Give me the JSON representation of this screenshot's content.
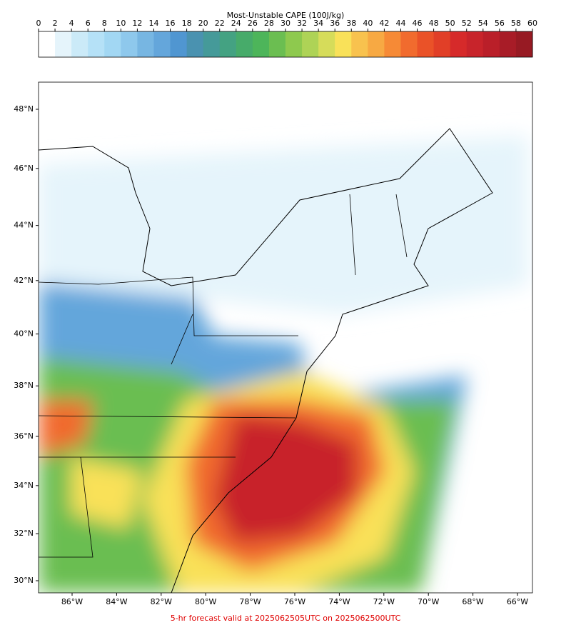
{
  "colorbar": {
    "title": "Most-Unstable CAPE (100J/kg)",
    "ticks": [
      0,
      2,
      4,
      6,
      8,
      10,
      12,
      14,
      16,
      18,
      20,
      22,
      24,
      26,
      28,
      30,
      32,
      34,
      36,
      38,
      40,
      42,
      44,
      46,
      48,
      50,
      52,
      54,
      56,
      58,
      60
    ],
    "colors": [
      "#ffffff",
      "#e5f4fb",
      "#cbeaf8",
      "#b5e1f7",
      "#a2d7f3",
      "#8ec8ec",
      "#77b6e2",
      "#64a6db",
      "#5096d1",
      "#4a92b0",
      "#459a99",
      "#44a282",
      "#47ab6a",
      "#4db55a",
      "#6bbe51",
      "#8ec94e",
      "#aed356",
      "#d6dc5a",
      "#f9e159",
      "#f8c24e",
      "#f7a943",
      "#f68a36",
      "#f16b2e",
      "#ea5228",
      "#e13f27",
      "#d62a2a",
      "#c8242b",
      "#ba1f29",
      "#a81c27",
      "#971a23"
    ]
  },
  "map": {
    "lat_ticks": [
      {
        "value": 48,
        "label": "48°N"
      },
      {
        "value": 46,
        "label": "46°N"
      },
      {
        "value": 44,
        "label": "44°N"
      },
      {
        "value": 42,
        "label": "42°N"
      },
      {
        "value": 40,
        "label": "40°N"
      },
      {
        "value": 38,
        "label": "38°N"
      },
      {
        "value": 36,
        "label": "36°N"
      },
      {
        "value": 34,
        "label": "34°N"
      },
      {
        "value": 32,
        "label": "32°N"
      },
      {
        "value": 30,
        "label": "30°N"
      }
    ],
    "lon_ticks": [
      {
        "value": -86,
        "label": "86°W"
      },
      {
        "value": -84,
        "label": "84°W"
      },
      {
        "value": -82,
        "label": "82°W"
      },
      {
        "value": -80,
        "label": "80°W"
      },
      {
        "value": -78,
        "label": "78°W"
      },
      {
        "value": -76,
        "label": "76°W"
      },
      {
        "value": -74,
        "label": "74°W"
      },
      {
        "value": -72,
        "label": "72°W"
      },
      {
        "value": -70,
        "label": "70°W"
      },
      {
        "value": -68,
        "label": "68°W"
      },
      {
        "value": -66,
        "label": "66°W"
      }
    ]
  },
  "footer": "5-hr forecast valid at 2025062505UTC on 2025062500UTC"
}
